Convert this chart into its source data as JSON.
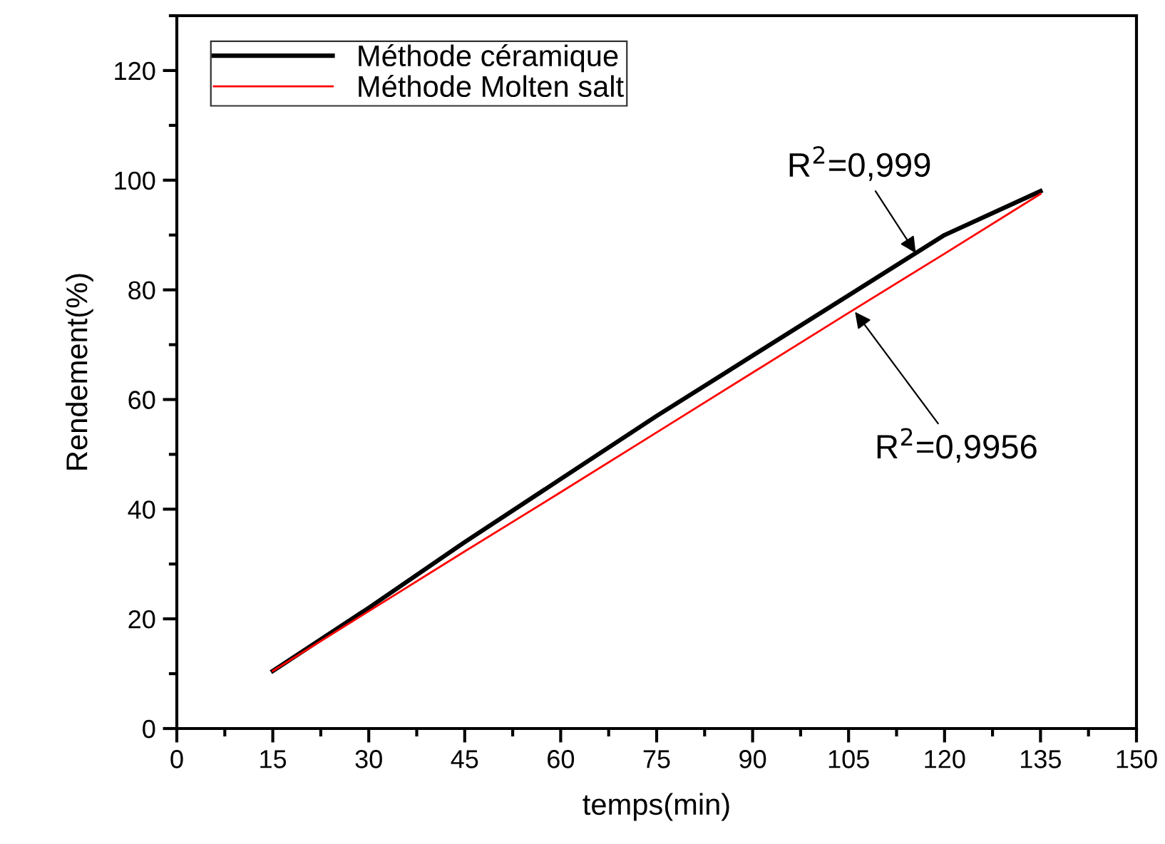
{
  "chart_data": {
    "type": "line",
    "xlabel": "temps(min)",
    "ylabel": "Rendement(%)",
    "x": [
      15,
      30,
      45,
      60,
      75,
      90,
      105,
      120,
      135
    ],
    "series": [
      {
        "name": "Méthode céramique",
        "color": "#000000",
        "values": [
          10.5,
          22,
          34,
          45.5,
          57,
          68,
          79,
          90,
          98
        ]
      },
      {
        "name": "Méthode Molten salt",
        "color": "#ff0000",
        "values": [
          10.5,
          21.4,
          32.3,
          43.1,
          54,
          64.9,
          75.8,
          86.6,
          97.5
        ]
      }
    ],
    "xlim": [
      0,
      150
    ],
    "xticks": [
      0,
      15,
      30,
      45,
      60,
      75,
      90,
      105,
      120,
      135,
      150
    ],
    "ylim": [
      0,
      130
    ],
    "yticks": [
      0,
      20,
      40,
      60,
      80,
      100,
      120
    ],
    "annotations": [
      {
        "text": "R$^{2}$=0,999",
        "x": 115.5,
        "y": 86.7
      },
      {
        "text": "R$^{2}$=0,9956",
        "x": 106,
        "y": 76
      }
    ],
    "legend": "top left",
    "grid": false,
    "marker": "none",
    "line_style": "solid"
  }
}
